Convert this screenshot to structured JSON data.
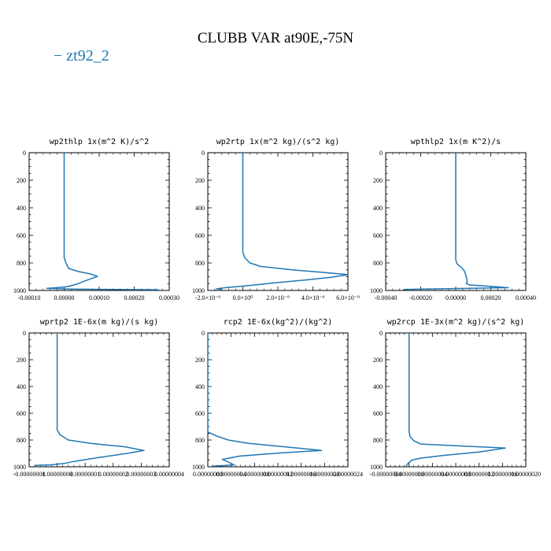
{
  "figure": {
    "title": "CLUBB VAR at90E,-75N",
    "legend_label": "zt92_2",
    "line_color": "#1f77b4"
  },
  "chart_data": [
    {
      "type": "line",
      "title": "wp2thlp  1x(m^2 K)/s^2",
      "xlim": [
        -0.0001,
        0.0003
      ],
      "ylim": [
        1000,
        0
      ],
      "xticks": [
        -0.0001,
        0,
        0.0001,
        0.0002,
        0.0003
      ],
      "xtick_labels": [
        "-0.00010",
        "0.00000",
        "0.00010",
        "0.00020",
        "0.00030"
      ],
      "yticks": [
        0,
        200,
        400,
        600,
        800,
        1000
      ],
      "ytick_labels": [
        "0",
        "200",
        "400",
        "600",
        "800",
        "1000"
      ],
      "series": [
        {
          "name": "zt92_2",
          "x": [
            0,
            0,
            0,
            0,
            0,
            5e-06,
            1.3e-05,
            4e-05,
            7.5e-05,
            9.5e-05,
            6e-05,
            3.5e-05,
            1e-05,
            -2.8e-05,
            -5e-05,
            2e-05,
            0.00015,
            0.00027
          ],
          "y": [
            0,
            200,
            500,
            700,
            760,
            800,
            840,
            862,
            880,
            898,
            930,
            955,
            972,
            981,
            985,
            990,
            993,
            995
          ]
        }
      ]
    },
    {
      "type": "line",
      "title": "wp2rtp  1x(m^2 kg)/(s^2 kg)",
      "xlim": [
        -2e-09,
        6e-09
      ],
      "ylim": [
        1000,
        0
      ],
      "xticks": [
        -2e-09,
        0,
        2e-09,
        4e-09,
        6e-09
      ],
      "xtick_labels": [
        "-2.0×10⁻⁹",
        "0.0×10⁰",
        "2.0×10⁻⁹",
        "4.0×10⁻⁹",
        "6.0×10⁻⁹"
      ],
      "yticks": [
        0,
        200,
        400,
        600,
        800,
        1000
      ],
      "ytick_labels": [
        "0",
        "200",
        "400",
        "600",
        "800",
        "1000"
      ],
      "series": [
        {
          "name": "zt92_2",
          "x": [
            0,
            0,
            0,
            0,
            1e-10,
            4e-10,
            1e-09,
            2.8e-09,
            4.5e-09,
            6e-09,
            5e-09,
            3.5e-09,
            1.8e-09,
            3e-10,
            -1e-09,
            -1.5e-09,
            -1.2e-09
          ],
          "y": [
            0,
            200,
            500,
            720,
            760,
            800,
            825,
            850,
            868,
            885,
            905,
            925,
            945,
            965,
            980,
            988,
            992
          ]
        }
      ]
    },
    {
      "type": "line",
      "title": "wpthlp2  1x(m K^2)/s",
      "xlim": [
        -0.0004,
        0.0004
      ],
      "ylim": [
        1000,
        0
      ],
      "xticks": [
        -0.0004,
        -0.0002,
        0,
        0.0002,
        0.0004
      ],
      "xtick_labels": [
        "-0.00040",
        "-0.00020",
        "0.00000",
        "0.00020",
        "0.00040"
      ],
      "yticks": [
        0,
        200,
        400,
        600,
        800,
        1000
      ],
      "ytick_labels": [
        "0",
        "200",
        "400",
        "600",
        "800",
        "1000"
      ],
      "series": [
        {
          "name": "zt92_2",
          "x": [
            0,
            0,
            0,
            0,
            1e-05,
            3e-05,
            5e-05,
            6e-05,
            6.5e-05,
            6e-05,
            8e-05,
            0.0002,
            0.0003,
            5e-05,
            -0.00018,
            -0.0003
          ],
          "y": [
            0,
            200,
            500,
            780,
            810,
            830,
            860,
            900,
            935,
            950,
            960,
            970,
            980,
            985,
            990,
            993
          ]
        }
      ]
    },
    {
      "type": "line",
      "title": "wprtp2  1E-6x(m kg)/(s kg)",
      "xlim": [
        -1e-08,
        4e-08
      ],
      "ylim": [
        1000,
        0
      ],
      "xticks": [
        -1e-08,
        0,
        1e-08,
        2e-08,
        3e-08,
        4e-08
      ],
      "xtick_labels": [
        "-0.00000001",
        "0.00000000",
        "0.00000001",
        "0.00000002",
        "0.00000003",
        "0.00000004"
      ],
      "yticks": [
        0,
        200,
        400,
        600,
        800,
        1000
      ],
      "ytick_labels": [
        "0",
        "200",
        "400",
        "600",
        "800",
        "1000"
      ],
      "series": [
        {
          "name": "zt92_2",
          "x": [
            0,
            0,
            0,
            0,
            1e-09,
            4e-09,
            1.2e-08,
            2.4e-08,
            3.1e-08,
            2.5e-08,
            1.5e-08,
            6e-09,
            2.5e-09,
            -2e-09,
            -8e-09
          ],
          "y": [
            0,
            200,
            500,
            725,
            760,
            800,
            825,
            850,
            878,
            900,
            930,
            960,
            975,
            985,
            990
          ]
        }
      ]
    },
    {
      "type": "line",
      "title": "rcp2  1E-6x(kg^2)/(kg^2)",
      "xlim": [
        0,
        2.4e-07
      ],
      "ylim": [
        1000,
        0
      ],
      "xticks": [
        0,
        4e-08,
        8e-08,
        1.2e-07,
        1.6e-07,
        2e-07,
        2.4e-07
      ],
      "xtick_labels": [
        "0.00000000",
        "0.00000004",
        "0.00000008",
        "0.00000012",
        "0.00000016",
        "0.00000020",
        "0.00000024"
      ],
      "yticks": [
        0,
        200,
        400,
        600,
        800,
        1000
      ],
      "ytick_labels": [
        "0",
        "200",
        "400",
        "600",
        "800",
        "1000"
      ],
      "series": [
        {
          "name": "zt92_2",
          "x": [
            0,
            0,
            0,
            0,
            1.5e-08,
            3.5e-08,
            7e-08,
            1.3e-07,
            1.95e-07,
            1.3e-07,
            5.5e-08,
            2.5e-08,
            3.5e-08,
            4.5e-08,
            2.5e-08,
            8e-09
          ],
          "y": [
            0,
            200,
            500,
            740,
            770,
            800,
            825,
            850,
            878,
            895,
            920,
            945,
            965,
            985,
            992,
            995
          ]
        }
      ]
    },
    {
      "type": "line",
      "title": "wp2rcp  1E-3x(m^2 kg)/(s^2 kg)",
      "xlim": [
        -4e-08,
        2e-07
      ],
      "ylim": [
        1000,
        0
      ],
      "xticks": [
        -4e-08,
        0,
        4e-08,
        8e-08,
        1.2e-07,
        1.6e-07,
        2e-07
      ],
      "xtick_labels": [
        "-0.00000004",
        "0.00000000",
        "0.00000004",
        "0.00000008",
        "0.00000012",
        "0.00000016",
        "0.00000020"
      ],
      "yticks": [
        0,
        200,
        400,
        600,
        800,
        1000
      ],
      "ytick_labels": [
        "0",
        "200",
        "400",
        "600",
        "800",
        "1000"
      ],
      "series": [
        {
          "name": "zt92_2",
          "x": [
            0,
            0,
            0,
            0,
            2e-09,
            8e-09,
            2e-08,
            9e-08,
            1.65e-07,
            1.2e-07,
            6e-08,
            2e-08,
            5e-09,
            -2e-09,
            -5e-09
          ],
          "y": [
            0,
            200,
            500,
            740,
            775,
            805,
            830,
            845,
            860,
            890,
            915,
            935,
            950,
            975,
            995
          ]
        }
      ]
    }
  ]
}
